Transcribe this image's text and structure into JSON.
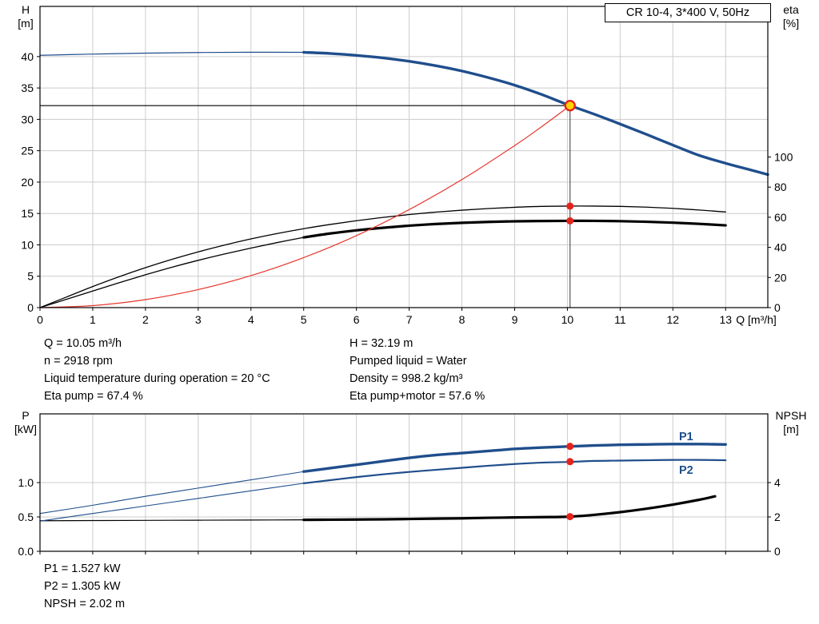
{
  "colors": {
    "curve_blue": "#1f4e8c",
    "curve_black": "#000000",
    "curve_red": "#e5352b",
    "marker_red": "#e5231b",
    "op_fill": "#ffd400",
    "grid": "#cccccc",
    "frame": "#000000"
  },
  "info_top": {
    "col1": [
      "Q = 10.05 m³/h",
      "n = 2918 rpm",
      "Liquid temperature during operation = 20 °C",
      "Eta pump = 67.4 %"
    ],
    "col2": [
      "H = 32.19 m",
      "Pumped liquid = Water",
      "Density = 998.2 kg/m³",
      "Eta pump+motor = 57.6 %"
    ]
  },
  "info_bottom": [
    "P1 = 1.527 kW",
    "P2 = 1.305 kW",
    "NPSH = 2.02 m"
  ],
  "chart_data": [
    {
      "id": "head_chart",
      "type": "line",
      "title": "CR 10-4, 3*400 V, 50Hz",
      "x_axis": {
        "unit_label": "Q [m³/h]",
        "min": 0,
        "max": 13.8,
        "ticks": [
          0,
          1,
          2,
          3,
          4,
          5,
          6,
          7,
          8,
          9,
          10,
          11,
          12,
          13
        ],
        "tick_labels": [
          "0",
          "1",
          "2",
          "3",
          "4",
          "5",
          "6",
          "7",
          "8",
          "9",
          "10",
          "11",
          "12",
          "13"
        ]
      },
      "y_left": {
        "title_lines": [
          "H",
          "[m]"
        ],
        "min": 0,
        "max": 48,
        "ticks": [
          0,
          5,
          10,
          15,
          20,
          25,
          30,
          35,
          40
        ],
        "tick_labels": [
          "0",
          "5",
          "10",
          "15",
          "20",
          "25",
          "30",
          "35",
          "40"
        ]
      },
      "y_right": {
        "title_lines": [
          "eta",
          "[%]"
        ],
        "min": 0,
        "max": 200,
        "ticks": [
          0,
          20,
          40,
          60,
          80,
          100
        ],
        "tick_labels": [
          "0",
          "20",
          "40",
          "60",
          "80",
          "100"
        ]
      },
      "series": [
        {
          "name": "eta-pump-curve",
          "axis": "right",
          "color_key": "curve_black",
          "width": 1.3,
          "points": [
            [
              0,
              0
            ],
            [
              0.5,
              7
            ],
            [
              1,
              14
            ],
            [
              1.5,
              20.5
            ],
            [
              2,
              26.5
            ],
            [
              2.5,
              32
            ],
            [
              3,
              37
            ],
            [
              3.5,
              41.5
            ],
            [
              4,
              45.6
            ],
            [
              4.5,
              49.2
            ],
            [
              5,
              52.4
            ],
            [
              5.5,
              55.2
            ],
            [
              6,
              57.7
            ],
            [
              6.5,
              59.9
            ],
            [
              7,
              61.8
            ],
            [
              7.5,
              63.4
            ],
            [
              8,
              64.7
            ],
            [
              8.5,
              65.8
            ],
            [
              9,
              66.6
            ],
            [
              9.5,
              67.2
            ],
            [
              10,
              67.4
            ],
            [
              10.5,
              67.4
            ],
            [
              11,
              67.2
            ],
            [
              11.5,
              66.7
            ],
            [
              12,
              65.9
            ],
            [
              12.5,
              64.8
            ],
            [
              13,
              63.5
            ]
          ]
        },
        {
          "name": "eta-pump-motor-curve-leadin",
          "axis": "right",
          "color_key": "curve_black",
          "width": 1.3,
          "points": [
            [
              0,
              0
            ],
            [
              0.5,
              5.5
            ],
            [
              1,
              11
            ],
            [
              1.5,
              16.5
            ],
            [
              2,
              21.8
            ],
            [
              2.5,
              26.8
            ],
            [
              3,
              31.4
            ],
            [
              3.5,
              35.6
            ],
            [
              4,
              39.5
            ],
            [
              4.5,
              43.2
            ],
            [
              5,
              46.6
            ]
          ]
        },
        {
          "name": "eta-pump-motor-curve",
          "axis": "right",
          "color_key": "curve_black",
          "width": 3.2,
          "points": [
            [
              5,
              46.6
            ],
            [
              5.5,
              49.2
            ],
            [
              6,
              51.3
            ],
            [
              6.5,
              53
            ],
            [
              7,
              54.4
            ],
            [
              7.5,
              55.5
            ],
            [
              8,
              56.3
            ],
            [
              8.5,
              56.9
            ],
            [
              9,
              57.3
            ],
            [
              9.5,
              57.5
            ],
            [
              10,
              57.6
            ],
            [
              10.5,
              57.6
            ],
            [
              11,
              57.4
            ],
            [
              11.5,
              57
            ],
            [
              12,
              56.4
            ],
            [
              12.5,
              55.6
            ],
            [
              13,
              54.6
            ]
          ]
        },
        {
          "name": "system-curve",
          "axis": "left",
          "color_key": "curve_red",
          "width": 1.2,
          "points": [
            [
              0,
              0
            ],
            [
              1,
              0.32
            ],
            [
              2,
              1.27
            ],
            [
              3,
              2.87
            ],
            [
              4,
              5.1
            ],
            [
              5,
              7.97
            ],
            [
              6,
              11.47
            ],
            [
              7,
              15.62
            ],
            [
              8,
              20.4
            ],
            [
              9,
              25.82
            ],
            [
              9.5,
              28.76
            ],
            [
              10,
              31.87
            ],
            [
              10.05,
              32.19
            ]
          ]
        },
        {
          "name": "head-curve-leadin",
          "axis": "left",
          "color_key": "curve_blue",
          "width": 1.2,
          "points": [
            [
              0,
              40.2
            ],
            [
              1,
              40.4
            ],
            [
              2,
              40.55
            ],
            [
              3,
              40.65
            ],
            [
              4,
              40.7
            ],
            [
              5,
              40.68
            ]
          ]
        },
        {
          "name": "head-curve",
          "axis": "left",
          "color_key": "curve_blue",
          "width": 3.4,
          "points": [
            [
              5,
              40.68
            ],
            [
              5.5,
              40.5
            ],
            [
              6,
              40.2
            ],
            [
              6.5,
              39.8
            ],
            [
              7,
              39.25
            ],
            [
              7.5,
              38.55
            ],
            [
              8,
              37.7
            ],
            [
              8.5,
              36.65
            ],
            [
              9,
              35.45
            ],
            [
              9.5,
              34
            ],
            [
              10,
              32.35
            ],
            [
              10.5,
              30.85
            ],
            [
              11,
              29.25
            ],
            [
              11.5,
              27.6
            ],
            [
              12,
              25.9
            ],
            [
              12.5,
              24.25
            ],
            [
              13,
              23
            ],
            [
              13.4,
              22.1
            ],
            [
              13.8,
              21.2
            ]
          ]
        }
      ],
      "ref_lines": [
        {
          "name": "duty-head-refline",
          "axis": "left",
          "from": [
            0,
            32.19
          ],
          "to": [
            10.05,
            32.19
          ],
          "color": "#000000"
        },
        {
          "name": "duty-flow-refline",
          "axis": "left",
          "from": [
            10.05,
            0
          ],
          "to": [
            10.05,
            32.19
          ],
          "color": "#555555"
        }
      ],
      "markers": [
        {
          "name": "duty-point-marker",
          "style": "op",
          "axis": "left",
          "x": 10.05,
          "y": 32.19
        },
        {
          "name": "eta-pump-duty-marker",
          "style": "dot",
          "axis": "right",
          "x": 10.05,
          "y": 67.4
        },
        {
          "name": "eta-total-duty-marker",
          "style": "dot",
          "axis": "right",
          "x": 10.05,
          "y": 57.6
        }
      ]
    },
    {
      "id": "power_chart",
      "type": "line",
      "curve_labels": [
        "P1",
        "P2"
      ],
      "x_axis": {
        "min": 0,
        "max": 13.8,
        "ticks": [
          0,
          1,
          2,
          3,
          4,
          5,
          6,
          7,
          8,
          9,
          10,
          11,
          12,
          13
        ]
      },
      "y_left": {
        "title_lines": [
          "P",
          "[kW]"
        ],
        "min": 0,
        "max": 2,
        "ticks": [
          0,
          0.5,
          1
        ],
        "tick_labels": [
          "0.0",
          "0.5",
          "1.0"
        ]
      },
      "y_right": {
        "title_lines": [
          "NPSH",
          "[m]"
        ],
        "min": 0,
        "max": 8,
        "ticks": [
          0,
          2,
          4
        ],
        "tick_labels": [
          "0",
          "2",
          "4"
        ]
      },
      "series": [
        {
          "name": "npsh-curve-leadin",
          "axis": "right",
          "color_key": "curve_black",
          "width": 1.2,
          "points": [
            [
              0,
              1.78
            ],
            [
              1,
              1.79
            ],
            [
              2,
              1.8
            ],
            [
              3,
              1.81
            ],
            [
              4,
              1.82
            ],
            [
              5,
              1.83
            ]
          ]
        },
        {
          "name": "npsh-curve",
          "axis": "right",
          "color_key": "curve_black",
          "width": 3.2,
          "points": [
            [
              5,
              1.83
            ],
            [
              5.5,
              1.84
            ],
            [
              6,
              1.85
            ],
            [
              6.5,
              1.86
            ],
            [
              7,
              1.88
            ],
            [
              7.5,
              1.9
            ],
            [
              8,
              1.92
            ],
            [
              8.5,
              1.95
            ],
            [
              9,
              1.97
            ],
            [
              9.5,
              1.99
            ],
            [
              10,
              2.01
            ],
            [
              10.5,
              2.12
            ],
            [
              11,
              2.28
            ],
            [
              11.5,
              2.48
            ],
            [
              12,
              2.72
            ],
            [
              12.5,
              3
            ],
            [
              12.8,
              3.2
            ]
          ]
        },
        {
          "name": "p2-curve-leadin",
          "axis": "left",
          "color_key": "curve_blue",
          "width": 1.1,
          "points": [
            [
              0,
              0.44
            ],
            [
              1,
              0.55
            ],
            [
              2,
              0.66
            ],
            [
              3,
              0.77
            ],
            [
              4,
              0.88
            ],
            [
              5,
              0.99
            ]
          ]
        },
        {
          "name": "p2-curve",
          "axis": "left",
          "color_key": "curve_blue",
          "width": 2.2,
          "points": [
            [
              5,
              0.99
            ],
            [
              5.5,
              1.035
            ],
            [
              6,
              1.08
            ],
            [
              6.5,
              1.12
            ],
            [
              7,
              1.155
            ],
            [
              7.5,
              1.185
            ],
            [
              8,
              1.215
            ],
            [
              8.5,
              1.245
            ],
            [
              9,
              1.27
            ],
            [
              9.5,
              1.29
            ],
            [
              10,
              1.3
            ],
            [
              10.5,
              1.315
            ],
            [
              11,
              1.32
            ],
            [
              11.5,
              1.325
            ],
            [
              12,
              1.33
            ],
            [
              12.5,
              1.33
            ],
            [
              13,
              1.325
            ]
          ]
        },
        {
          "name": "p1-curve-leadin",
          "axis": "left",
          "color_key": "curve_blue",
          "width": 1.1,
          "points": [
            [
              0,
              0.55
            ],
            [
              1,
              0.67
            ],
            [
              2,
              0.8
            ],
            [
              3,
              0.92
            ],
            [
              4,
              1.04
            ],
            [
              5,
              1.16
            ]
          ]
        },
        {
          "name": "p1-curve",
          "axis": "left",
          "color_key": "curve_blue",
          "width": 3.4,
          "points": [
            [
              5,
              1.16
            ],
            [
              5.5,
              1.21
            ],
            [
              6,
              1.26
            ],
            [
              6.5,
              1.31
            ],
            [
              7,
              1.36
            ],
            [
              7.5,
              1.4
            ],
            [
              8,
              1.43
            ],
            [
              8.5,
              1.46
            ],
            [
              9,
              1.49
            ],
            [
              9.5,
              1.51
            ],
            [
              10,
              1.525
            ],
            [
              10.5,
              1.54
            ],
            [
              11,
              1.55
            ],
            [
              11.5,
              1.555
            ],
            [
              12,
              1.56
            ],
            [
              12.5,
              1.56
            ],
            [
              13,
              1.555
            ]
          ]
        }
      ],
      "ref_lines": [],
      "markers": [
        {
          "name": "p1-duty-marker",
          "style": "dot",
          "axis": "left",
          "x": 10.05,
          "y": 1.527
        },
        {
          "name": "p2-duty-marker",
          "style": "dot",
          "axis": "left",
          "x": 10.05,
          "y": 1.305
        },
        {
          "name": "npsh-duty-marker",
          "style": "dot",
          "axis": "right",
          "x": 10.05,
          "y": 2.02
        }
      ]
    }
  ]
}
